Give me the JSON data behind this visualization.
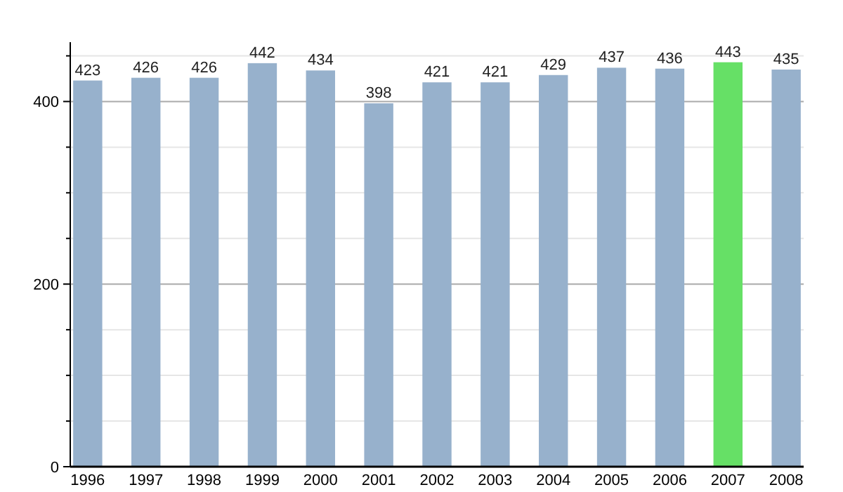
{
  "chart_data": {
    "type": "bar",
    "categories": [
      "1996",
      "1997",
      "1998",
      "1999",
      "2000",
      "2001",
      "2002",
      "2003",
      "2004",
      "2005",
      "2006",
      "2007",
      "2008"
    ],
    "values": [
      423,
      426,
      426,
      442,
      434,
      398,
      421,
      421,
      429,
      437,
      436,
      443,
      435
    ],
    "colors": [
      "#97b1cc",
      "#97b1cc",
      "#97b1cc",
      "#97b1cc",
      "#97b1cc",
      "#97b1cc",
      "#97b1cc",
      "#97b1cc",
      "#97b1cc",
      "#97b1cc",
      "#97b1cc",
      "#66e066",
      "#97b1cc"
    ],
    "ylim": [
      0,
      465
    ],
    "yticks": [
      0,
      {
        "value": 50,
        "label": null
      },
      {
        "value": 100,
        "label": null
      },
      {
        "value": 150,
        "label": null
      },
      200,
      {
        "value": 250,
        "label": null
      },
      {
        "value": 300,
        "label": null
      },
      {
        "value": 350,
        "label": null
      },
      400,
      {
        "value": 450,
        "label": null
      }
    ],
    "grid": true,
    "data_labels": true
  }
}
